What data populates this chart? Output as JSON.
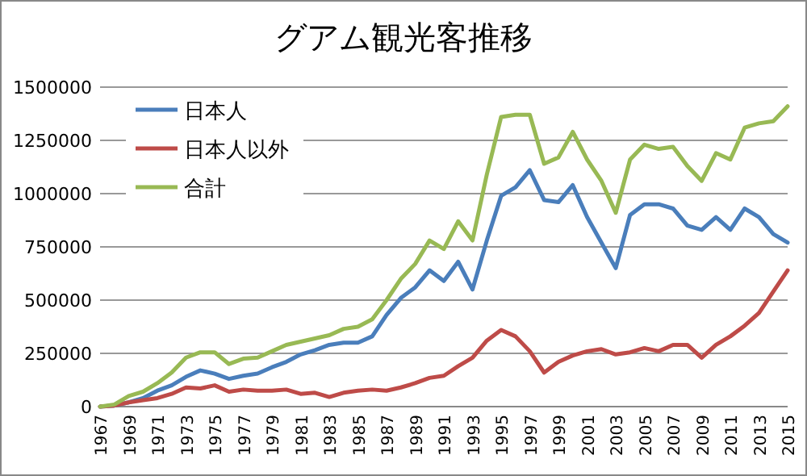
{
  "chart_data": {
    "type": "line",
    "title": "グアム観光客推移",
    "x": [
      1967,
      1968,
      1969,
      1970,
      1971,
      1972,
      1973,
      1974,
      1975,
      1976,
      1977,
      1978,
      1979,
      1980,
      1981,
      1982,
      1983,
      1984,
      1985,
      1986,
      1987,
      1988,
      1989,
      1990,
      1991,
      1992,
      1993,
      1994,
      1995,
      1996,
      1997,
      1998,
      1999,
      2000,
      2001,
      2002,
      2003,
      2004,
      2005,
      2006,
      2007,
      2008,
      2009,
      2010,
      2011,
      2012,
      2013,
      2014,
      2015
    ],
    "series": [
      {
        "name": "日本人",
        "color": "#4a7ebb",
        "values": [
          0,
          5000,
          20000,
          40000,
          75000,
          100000,
          140000,
          170000,
          155000,
          130000,
          145000,
          155000,
          185000,
          210000,
          245000,
          265000,
          290000,
          300000,
          300000,
          330000,
          430000,
          510000,
          560000,
          640000,
          590000,
          680000,
          550000,
          780000,
          990000,
          1030000,
          1110000,
          970000,
          960000,
          1040000,
          890000,
          770000,
          650000,
          900000,
          950000,
          950000,
          930000,
          850000,
          830000,
          890000,
          830000,
          930000,
          890000,
          810000,
          770000
        ]
      },
      {
        "name": "日本人以外",
        "color": "#be4b48",
        "values": [
          0,
          5000,
          20000,
          30000,
          40000,
          60000,
          90000,
          85000,
          100000,
          70000,
          80000,
          75000,
          75000,
          80000,
          60000,
          65000,
          45000,
          65000,
          75000,
          80000,
          75000,
          90000,
          110000,
          135000,
          145000,
          190000,
          230000,
          310000,
          360000,
          330000,
          260000,
          160000,
          210000,
          240000,
          260000,
          270000,
          245000,
          255000,
          275000,
          260000,
          290000,
          290000,
          230000,
          290000,
          330000,
          380000,
          440000,
          540000,
          640000
        ]
      },
      {
        "name": "合計",
        "color": "#98b954",
        "values": [
          0,
          10000,
          50000,
          70000,
          110000,
          160000,
          230000,
          255000,
          255000,
          200000,
          225000,
          230000,
          260000,
          290000,
          305000,
          320000,
          335000,
          365000,
          375000,
          410000,
          500000,
          600000,
          670000,
          780000,
          740000,
          870000,
          780000,
          1090000,
          1360000,
          1370000,
          1370000,
          1140000,
          1170000,
          1290000,
          1160000,
          1060000,
          910000,
          1160000,
          1230000,
          1210000,
          1220000,
          1130000,
          1060000,
          1190000,
          1160000,
          1310000,
          1330000,
          1340000,
          1410000
        ]
      }
    ],
    "xlim": [
      1967,
      2015
    ],
    "xticks": [
      1967,
      1969,
      1971,
      1973,
      1975,
      1977,
      1979,
      1981,
      1983,
      1985,
      1987,
      1989,
      1991,
      1993,
      1995,
      1997,
      1999,
      2001,
      2003,
      2005,
      2007,
      2009,
      2011,
      2013,
      2015
    ],
    "ylim": [
      0,
      1500000
    ],
    "yticks": [
      0,
      250000,
      500000,
      750000,
      1000000,
      1250000,
      1500000
    ],
    "grid": "y",
    "legend": "top left",
    "marker": "none",
    "line_style": "solid"
  }
}
